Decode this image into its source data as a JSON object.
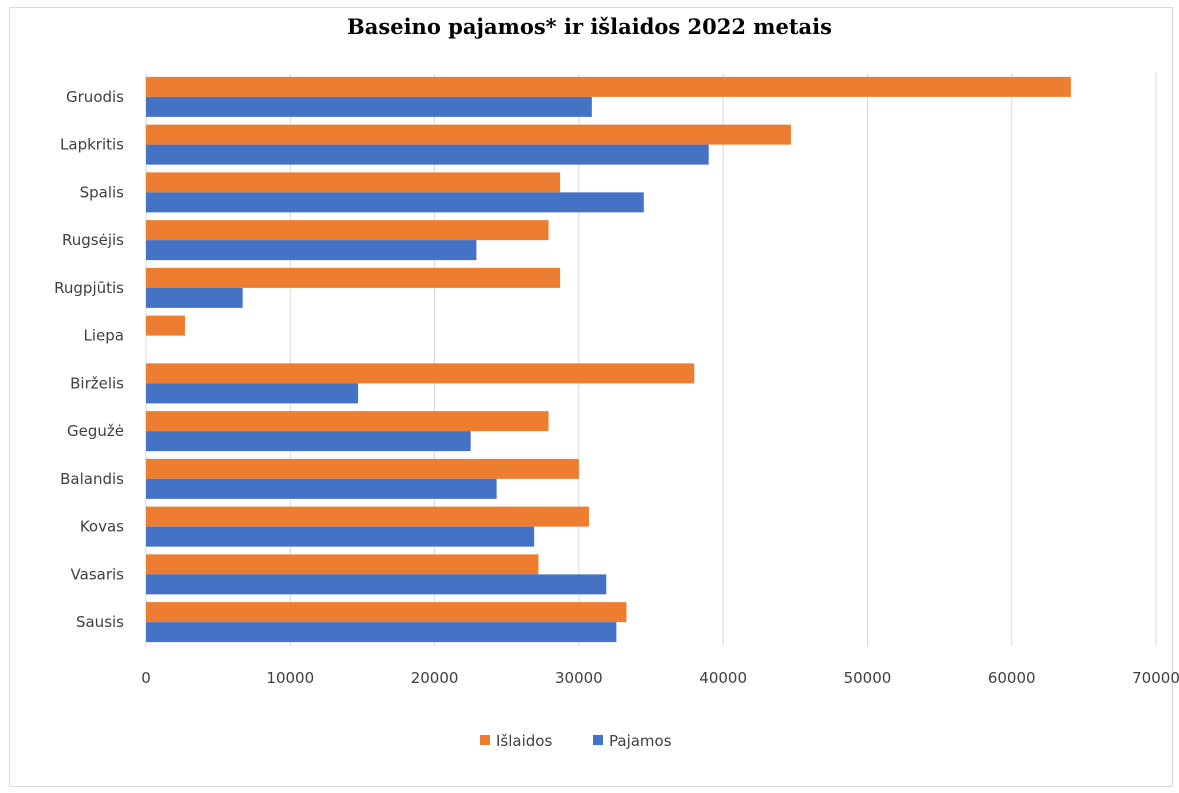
{
  "chart_data": {
    "type": "bar",
    "orientation": "horizontal",
    "title": "Baseino pajamos* ir išlaidos 2022 metais",
    "xlabel": "",
    "ylabel": "",
    "categories": [
      "Sausis",
      "Vasaris",
      "Kovas",
      "Balandis",
      "Gegužė",
      "Birželis",
      "Liepa",
      "Rugpjūtis",
      "Rugsėjis",
      "Spalis",
      "Lapkritis",
      "Gruodis"
    ],
    "series": [
      {
        "name": "Išlaidos",
        "color": "#ED7D31",
        "values": [
          33300,
          27200,
          30700,
          30000,
          27900,
          38000,
          2700,
          28700,
          27900,
          28700,
          44700,
          64100
        ]
      },
      {
        "name": "Pajamos",
        "color": "#4472C4",
        "values": [
          32600,
          31900,
          26900,
          24300,
          22500,
          14700,
          0,
          6700,
          22900,
          34500,
          39000,
          30900
        ]
      }
    ],
    "xlim": [
      0,
      70000
    ],
    "xticks": [
      0,
      10000,
      20000,
      30000,
      40000,
      50000,
      60000,
      70000
    ],
    "xtick_labels": [
      "0",
      "10000",
      "20000",
      "30000",
      "40000",
      "50000",
      "60000",
      "70000"
    ],
    "grid": true,
    "legend_position": "bottom"
  }
}
